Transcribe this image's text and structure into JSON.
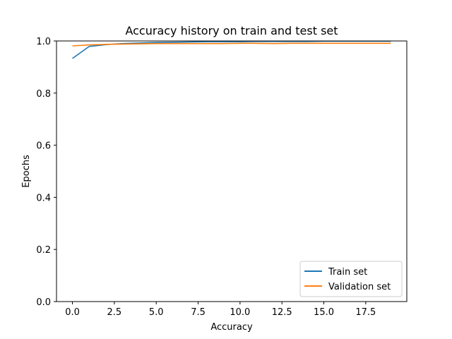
{
  "chart_data": {
    "type": "line",
    "title": "Accuracy history on train and test set",
    "xlabel": "Accuracy",
    "ylabel": "Epochs",
    "xlim": [
      -0.95,
      19.95
    ],
    "ylim": [
      0.0,
      1.0
    ],
    "xticks": [
      0.0,
      2.5,
      5.0,
      7.5,
      10.0,
      12.5,
      15.0,
      17.5
    ],
    "xtick_labels": [
      "0.0",
      "2.5",
      "5.0",
      "7.5",
      "10.0",
      "12.5",
      "15.0",
      "17.5"
    ],
    "yticks": [
      0.0,
      0.2,
      0.4,
      0.6,
      0.8,
      1.0
    ],
    "ytick_labels": [
      "0.0",
      "0.2",
      "0.4",
      "0.6",
      "0.8",
      "1.0"
    ],
    "grid": false,
    "legend_position": "lower-right",
    "x": [
      0,
      1,
      2,
      3,
      4,
      5,
      6,
      7,
      8,
      9,
      10,
      11,
      12,
      13,
      14,
      15,
      16,
      17,
      18,
      19
    ],
    "series": [
      {
        "name": "Train set",
        "color": "#1f77b4",
        "values": [
          0.933,
          0.979,
          0.986,
          0.99,
          0.992,
          0.994,
          0.995,
          0.996,
          0.997,
          0.997,
          0.997,
          0.998,
          0.998,
          0.998,
          0.998,
          0.999,
          0.999,
          0.999,
          0.999,
          0.999
        ]
      },
      {
        "name": "Validation set",
        "color": "#ff7f0e",
        "values": [
          0.981,
          0.985,
          0.987,
          0.988,
          0.989,
          0.99,
          0.99,
          0.99,
          0.99,
          0.99,
          0.991,
          0.991,
          0.99,
          0.991,
          0.991,
          0.991,
          0.991,
          0.991,
          0.991,
          0.991
        ]
      }
    ]
  }
}
